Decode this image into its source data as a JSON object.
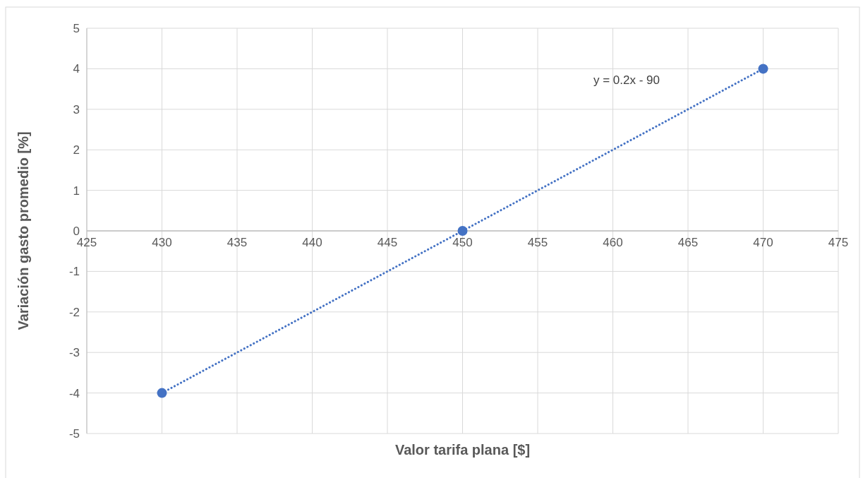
{
  "chart_data": {
    "type": "scatter",
    "xlabel": "Valor tarifa plana [$]",
    "ylabel": "Variación gasto promedio [%]",
    "xlim": [
      425,
      475
    ],
    "xticks": [
      425,
      430,
      435,
      440,
      445,
      450,
      455,
      460,
      465,
      470,
      475
    ],
    "ylim": [
      -5,
      5
    ],
    "yticks": [
      -5,
      -4,
      -3,
      -2,
      -1,
      0,
      1,
      2,
      3,
      4,
      5
    ],
    "grid": true,
    "series": [
      {
        "type": "line",
        "x": [
          430,
          470
        ],
        "values": [
          -4,
          4
        ],
        "color": "#4472c4",
        "line_style": "dotted",
        "marker": "none"
      },
      {
        "x": [
          430,
          450,
          470
        ],
        "values": [
          -4,
          0,
          4
        ],
        "color": "#4472c4",
        "marker": "circle"
      }
    ],
    "annotations": [
      "y = 0.2x - 90"
    ]
  }
}
